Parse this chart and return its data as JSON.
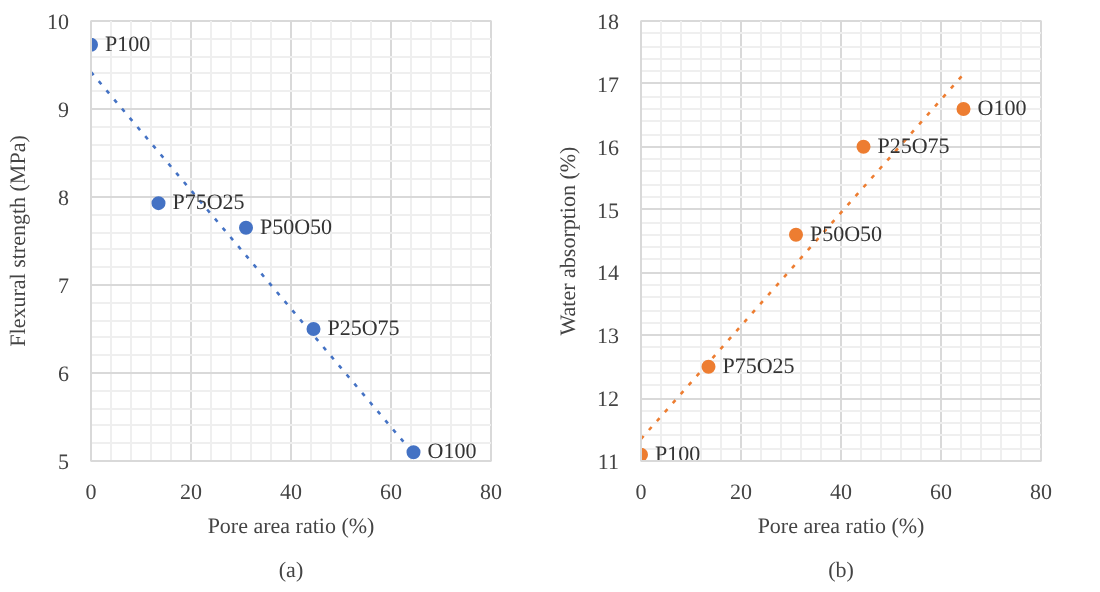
{
  "chart_data": [
    {
      "type": "scatter",
      "xlabel": "Pore area ratio (%)",
      "ylabel": "Flexural strength (MPa)",
      "xlim": [
        0,
        80
      ],
      "xticks": [
        0,
        20,
        40,
        60,
        80
      ],
      "ylim": [
        5,
        10
      ],
      "yticks": [
        5,
        6,
        7,
        8,
        9,
        10
      ],
      "grid": true,
      "series": [
        {
          "marker": "circle",
          "color": "#4472c4",
          "x": [
            0,
            13.5,
            31,
            44.5,
            64.5
          ],
          "values": [
            9.73,
            7.93,
            7.65,
            6.5,
            5.1
          ]
        },
        {
          "type": "line",
          "line_style": "dotted",
          "color": "#4472c4",
          "x": [
            0,
            65
          ],
          "values": [
            9.42,
            5.05
          ]
        }
      ],
      "annotations": [
        {
          "text": "P100",
          "x": 0,
          "y": 9.73
        },
        {
          "text": "P75O25",
          "x": 13.5,
          "y": 7.93
        },
        {
          "text": "P50O50",
          "x": 31,
          "y": 7.65
        },
        {
          "text": "P25O75",
          "x": 44.5,
          "y": 6.5
        },
        {
          "text": "O100",
          "x": 64.5,
          "y": 5.1
        },
        "(a)"
      ]
    },
    {
      "type": "scatter",
      "xlabel": "Pore area ratio (%)",
      "ylabel": "Water absorption (%)",
      "xlim": [
        0,
        80
      ],
      "xticks": [
        0,
        20,
        40,
        60,
        80
      ],
      "ylim": [
        11,
        18
      ],
      "yticks": [
        11,
        12,
        13,
        14,
        15,
        16,
        17,
        18
      ],
      "grid": true,
      "series": [
        {
          "marker": "circle",
          "color": "#ed7d31",
          "x": [
            0,
            13.5,
            31,
            44.5,
            64.5
          ],
          "values": [
            11.1,
            12.5,
            14.6,
            16.0,
            16.6
          ]
        },
        {
          "type": "line",
          "line_style": "dotted",
          "color": "#ed7d31",
          "x": [
            0,
            65
          ],
          "values": [
            11.35,
            17.2
          ]
        }
      ],
      "annotations": [
        {
          "text": "P100",
          "x": 0,
          "y": 11.1
        },
        {
          "text": "P75O25",
          "x": 13.5,
          "y": 12.5
        },
        {
          "text": "P50O50",
          "x": 31,
          "y": 14.6
        },
        {
          "text": "P25O75",
          "x": 44.5,
          "y": 16.0
        },
        {
          "text": "O100",
          "x": 64.5,
          "y": 16.6
        },
        "(b)"
      ]
    }
  ]
}
